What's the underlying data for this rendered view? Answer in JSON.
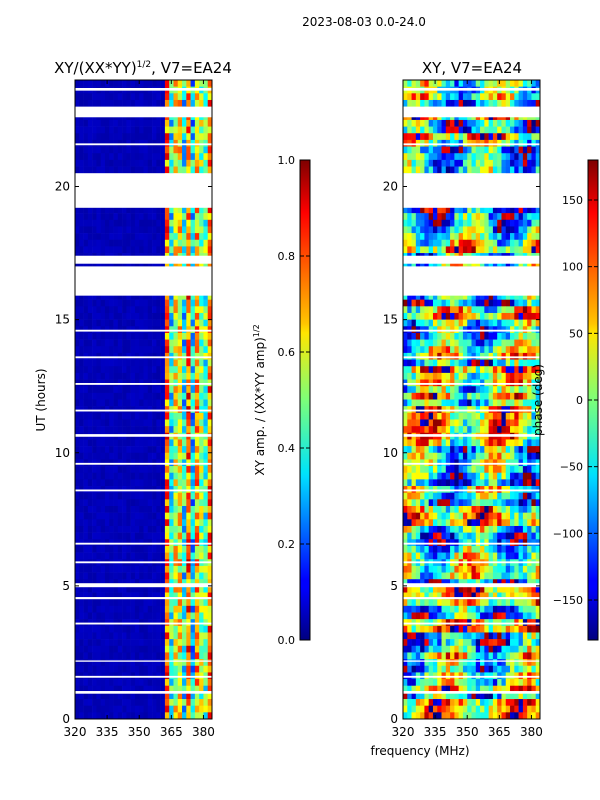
{
  "suptitle": "2023-08-03 0.0-24.0",
  "xlabel_shared": "frequency (MHz)",
  "chart_data": [
    {
      "type": "heatmap",
      "title_main": "XY/(XX*YY)",
      "title_sup": "1/2",
      "title_tail": ", V7=EA24",
      "ylabel": "UT (hours)",
      "xlim": [
        320,
        384
      ],
      "ylim": [
        0,
        24
      ],
      "xticks": [
        320,
        335,
        350,
        365,
        380
      ],
      "yticks": [
        0,
        5,
        10,
        15,
        20
      ],
      "colorbar": {
        "label_main": "XY amp. / (XX*YY amp)",
        "label_sup": "1/2",
        "range": [
          0.0,
          1.0
        ],
        "ticks": [
          "0.0",
          "0.2",
          "0.4",
          "0.6",
          "0.8",
          "1.0"
        ],
        "colormap": "jet"
      },
      "gaps_hours": [
        [
          0.95,
          1.05
        ],
        [
          1.55,
          1.62
        ],
        [
          2.15,
          2.2
        ],
        [
          3.55,
          3.62
        ],
        [
          4.5,
          4.58
        ],
        [
          4.95,
          5.1
        ],
        [
          5.85,
          5.92
        ],
        [
          6.55,
          6.62
        ],
        [
          8.55,
          8.62
        ],
        [
          9.55,
          9.62
        ],
        [
          10.6,
          10.7
        ],
        [
          11.55,
          11.62
        ],
        [
          12.55,
          12.62
        ],
        [
          13.55,
          13.62
        ],
        [
          14.55,
          14.62
        ],
        [
          15.9,
          16.0
        ],
        [
          16.0,
          17.0
        ],
        [
          17.1,
          17.4
        ],
        [
          19.2,
          20.5
        ],
        [
          21.55,
          21.62
        ],
        [
          22.6,
          23.0
        ],
        [
          23.6,
          23.7
        ]
      ],
      "note": "Uniform low amplitude (~0.05) for 320-362 MHz; elevated amplitudes (0.3-0.9) in channels 362-383 MHz"
    },
    {
      "type": "heatmap",
      "title": "XY, V7=EA24",
      "xlim": [
        320,
        384
      ],
      "ylim": [
        0,
        24
      ],
      "xticks": [
        320,
        335,
        350,
        365,
        380
      ],
      "yticks": [
        0,
        5,
        10,
        15,
        20
      ],
      "colorbar": {
        "label": "phase (deg)",
        "range": [
          -180,
          180
        ],
        "ticks": [
          "150",
          "100",
          "50",
          "0",
          "−50",
          "−100",
          "−150"
        ],
        "colormap": "jet"
      },
      "gaps_hours": [
        [
          0.95,
          1.05
        ],
        [
          1.55,
          1.62
        ],
        [
          2.15,
          2.2
        ],
        [
          3.55,
          3.62
        ],
        [
          4.5,
          4.58
        ],
        [
          4.95,
          5.1
        ],
        [
          5.85,
          5.92
        ],
        [
          6.55,
          6.62
        ],
        [
          8.55,
          8.62
        ],
        [
          9.55,
          9.62
        ],
        [
          10.6,
          10.7
        ],
        [
          11.55,
          11.62
        ],
        [
          12.55,
          12.62
        ],
        [
          13.55,
          13.62
        ],
        [
          14.55,
          14.62
        ],
        [
          15.9,
          16.0
        ],
        [
          16.0,
          17.0
        ],
        [
          17.1,
          17.4
        ],
        [
          19.2,
          20.5
        ],
        [
          21.55,
          21.62
        ],
        [
          22.6,
          23.0
        ],
        [
          23.6,
          23.7
        ]
      ],
      "note": "Phase values vary across full -180 to 180 deg range"
    }
  ]
}
